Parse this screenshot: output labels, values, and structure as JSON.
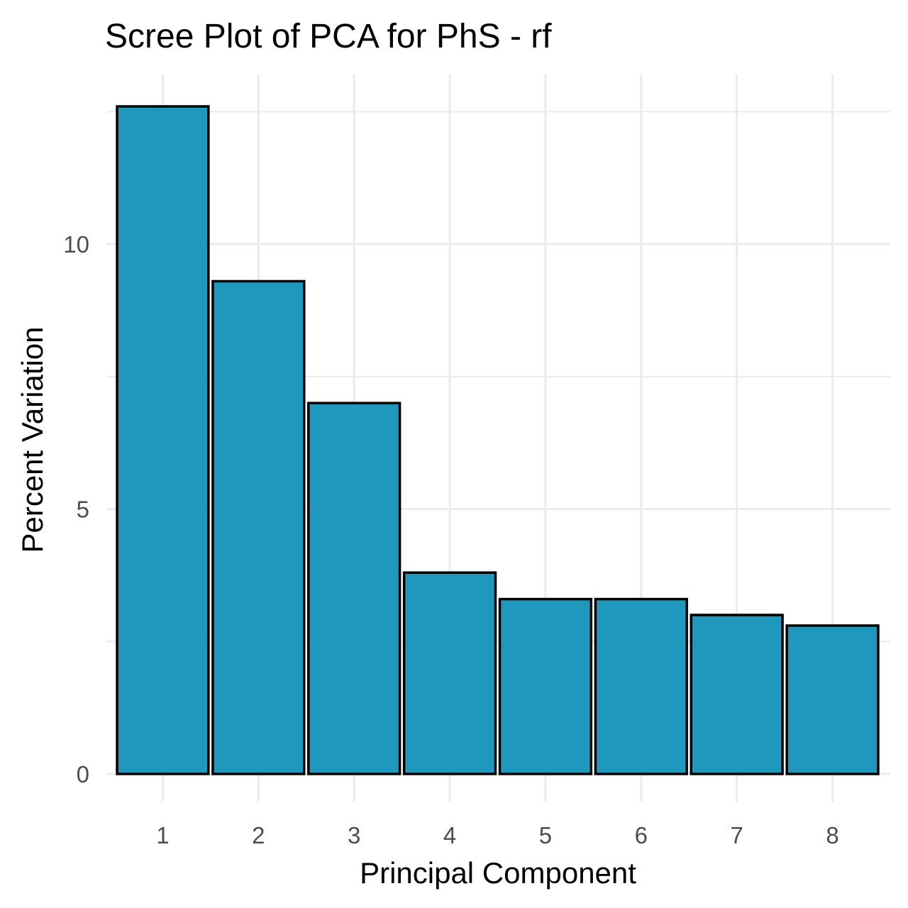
{
  "chart_data": {
    "type": "bar",
    "title": "Scree Plot of PCA for PhS - rf",
    "xlabel": "Principal Component",
    "ylabel": "Percent Variation",
    "categories": [
      "1",
      "2",
      "3",
      "4",
      "5",
      "6",
      "7",
      "8"
    ],
    "values": [
      12.6,
      9.3,
      7.0,
      3.8,
      3.3,
      3.3,
      3.0,
      2.8
    ],
    "ylim": [
      0,
      12.6
    ],
    "y_ticks": [
      0,
      5,
      10
    ],
    "y_tick_labels": [
      "0",
      "5",
      "10"
    ],
    "grid": true,
    "bar_fill": "#2097BD",
    "bar_stroke": "#000000",
    "grid_color": "#EBEBEB"
  }
}
